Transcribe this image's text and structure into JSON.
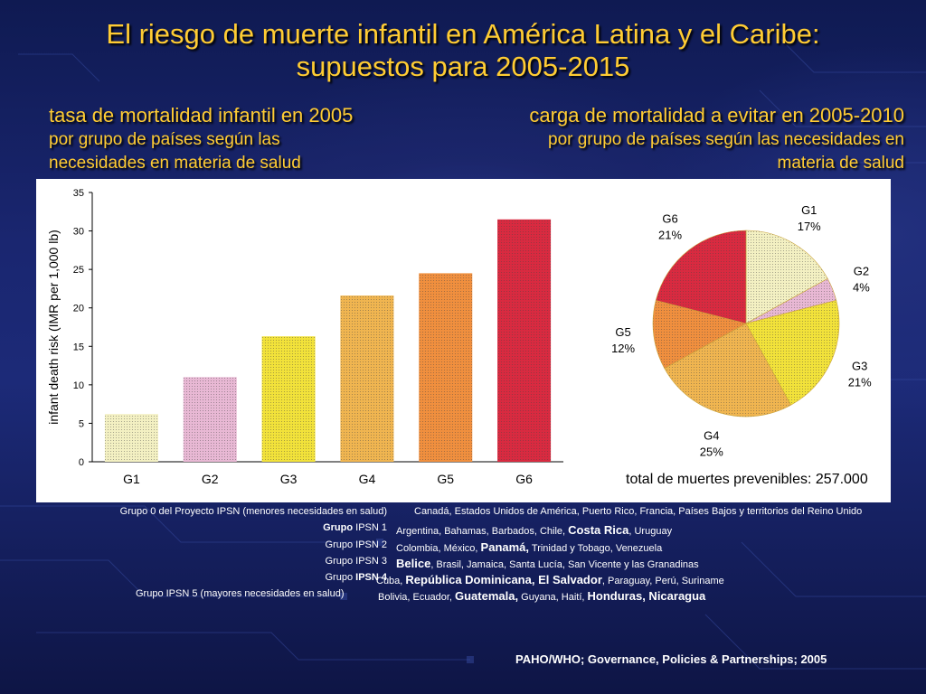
{
  "title": {
    "line1": "El riesgo de muerte infantil en América Latina y el Caribe:",
    "line2": "supuestos para 2005-2015"
  },
  "left_subtitle": {
    "heading": "tasa de mortalidad infantil en 2005",
    "desc1": "por grupo de países según las",
    "desc2": "necesidades en materia de salud"
  },
  "right_subtitle": {
    "heading": "carga de mortalidad a evitar en 2005-2010",
    "desc1": "por grupo de países según las necesidades en",
    "desc2": "materia de salud"
  },
  "chart_data": [
    {
      "type": "bar",
      "categories": [
        "G1",
        "G2",
        "G3",
        "G4",
        "G5",
        "G6"
      ],
      "values": [
        6.2,
        11,
        16.3,
        21.6,
        24.5,
        31.5
      ],
      "colors": [
        "#f3f0c2",
        "#e8b8d4",
        "#f2e23a",
        "#f0b550",
        "#f08f3e",
        "#d92a40"
      ],
      "ylabel": "infant death risk (IMR per 1,000 lb)",
      "xlabel": "",
      "ylim": [
        0,
        35
      ],
      "yticks": [
        0,
        5,
        10,
        15,
        20,
        25,
        30,
        35
      ]
    },
    {
      "type": "pie",
      "labels": [
        "G1",
        "G2",
        "G3",
        "G4",
        "G5",
        "G6"
      ],
      "values": [
        17,
        4,
        21,
        25,
        12,
        21
      ],
      "pct_labels": [
        "17%",
        "4%",
        "21%",
        "25%",
        "12%",
        "21%"
      ],
      "colors": [
        "#f3f0c2",
        "#e8b8d4",
        "#f2e23a",
        "#f0b550",
        "#f08f3e",
        "#d92a40"
      ],
      "total_text": "total de muertes prevenibles: 257.000"
    }
  ],
  "legend": {
    "g0": {
      "label": "Grupo 0 del Proyecto IPSN (menores necesidades en salud)",
      "countries": "Canadá, Estados Unidos de América, Puerto Rico, Francia, Países Bajos y territorios del Reino Unido"
    },
    "g1": {
      "label_a": "Grupo",
      "label_b": " IPSN 1",
      "c1": "Argentina, Bahamas, Barbados, Chile, ",
      "c2": "Costa Rica",
      "c3": ", Uruguay"
    },
    "g2": {
      "label": "Grupo IPSN 2",
      "c1": "Colombia, México, ",
      "c2": "Panamá,",
      "c3": " Trinidad y Tobago, Venezuela"
    },
    "g3": {
      "label": "Grupo IPSN 3",
      "c1": "Belice",
      "c2": ", Brasil, Jamaica, Santa Lucía, San Vicente y las Granadinas"
    },
    "g4": {
      "label_a": "Grupo ",
      "label_b": "IPSN 4",
      "c1": "Cuba, ",
      "c2": "República Dominicana, El Salvador",
      "c3": ", Paraguay, Perú, Suriname"
    },
    "g5": {
      "label": "Grupo IPSN 5 (mayores necesidades en salud)",
      "c1": "Bolivia, Ecuador, ",
      "c2": "Guatemala,",
      "c3": " Guyana, Haití, ",
      "c4": "Honduras, Nicaragua"
    }
  },
  "source": "PAHO/WHO; Governance, Policies & Partnerships; 2005"
}
